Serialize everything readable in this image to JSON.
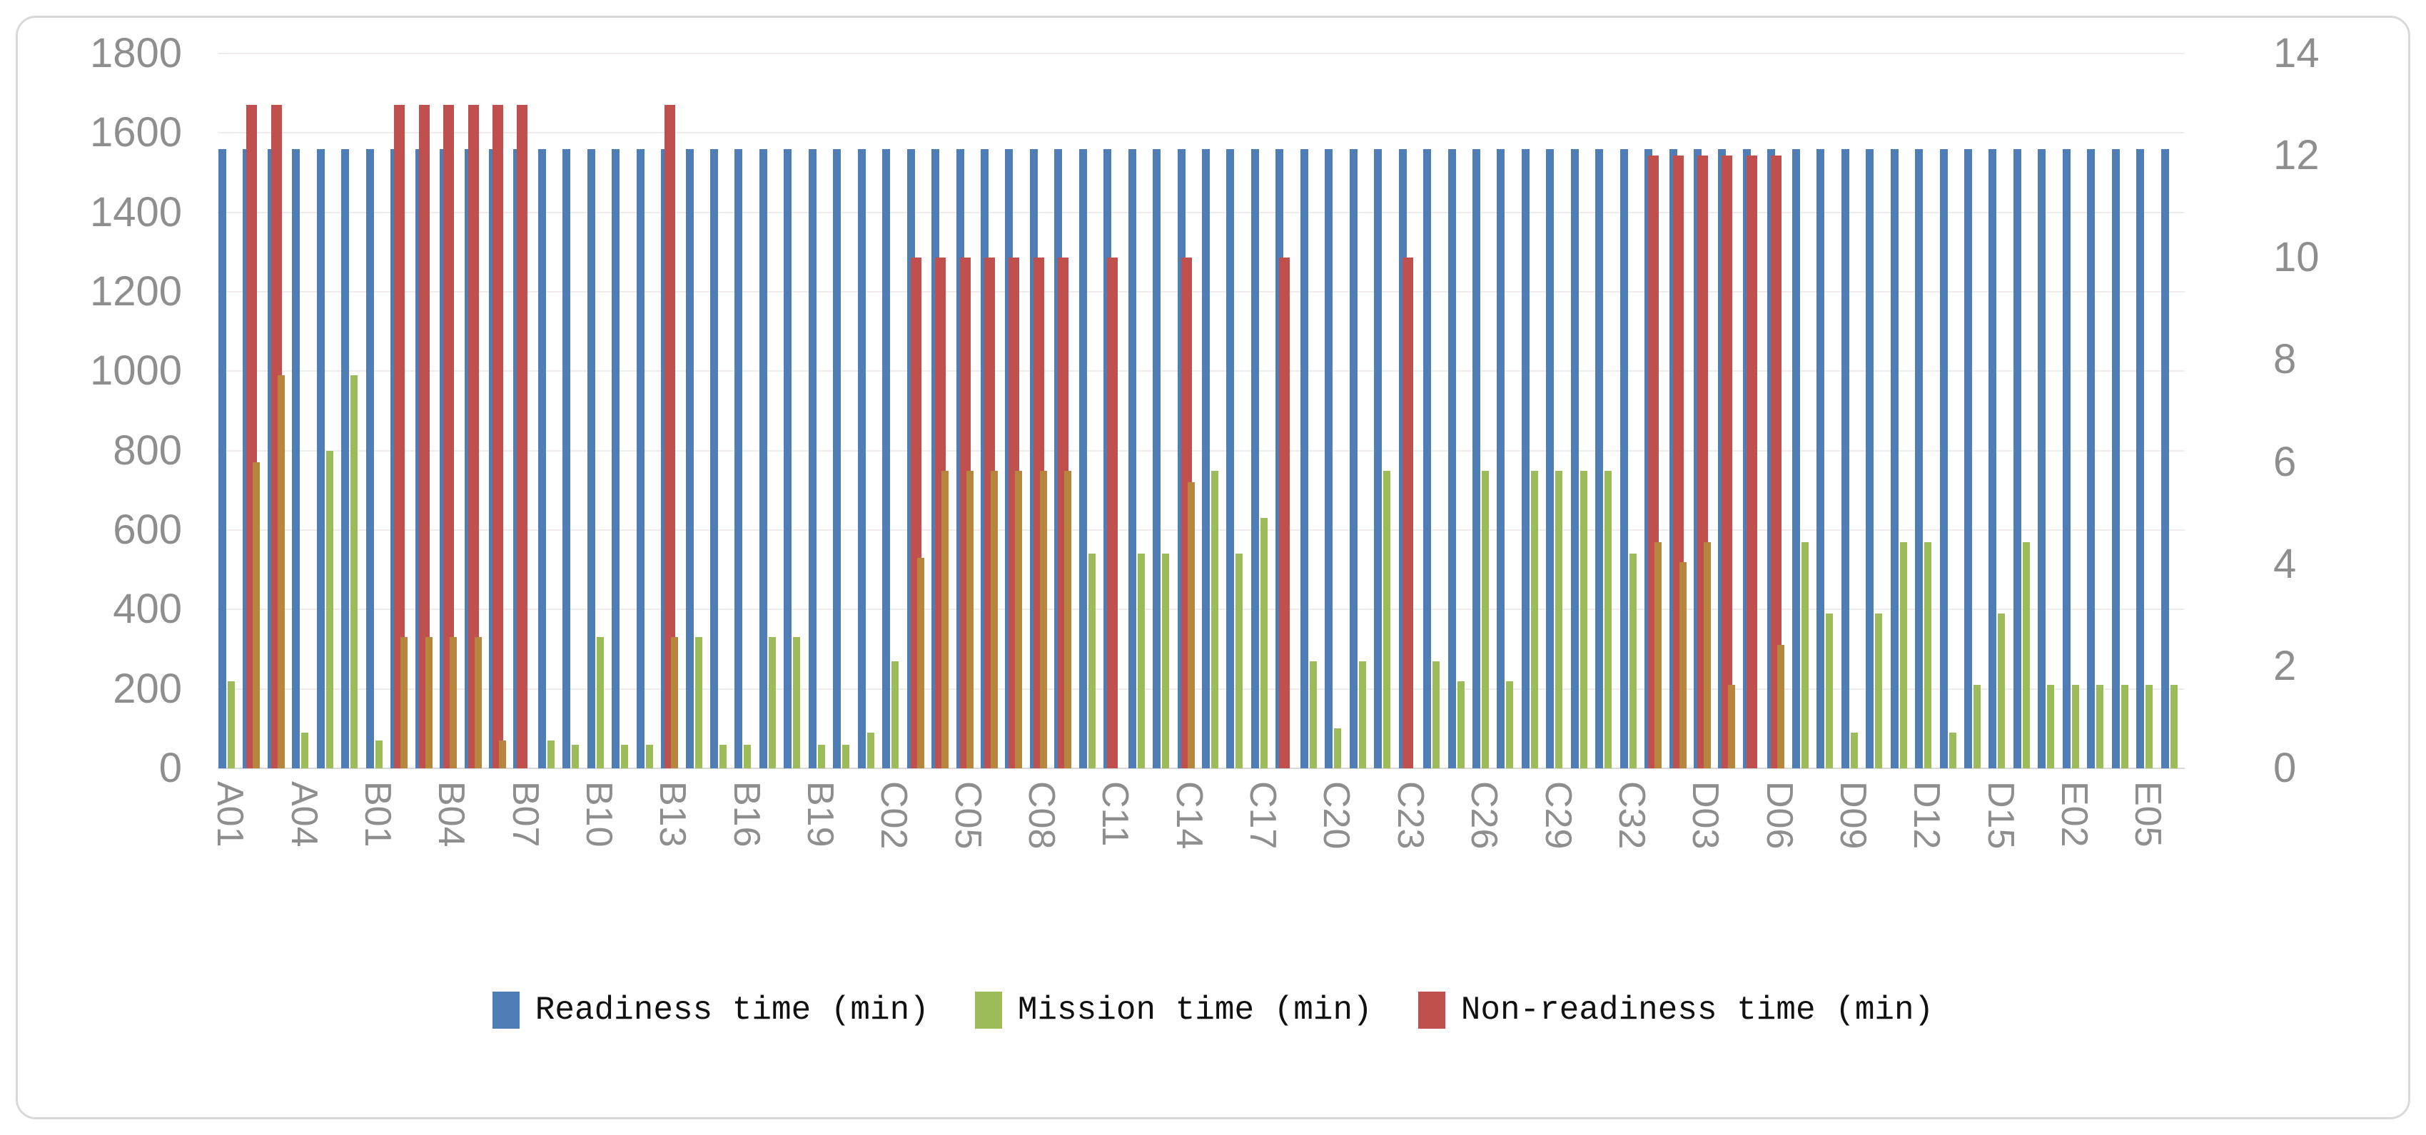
{
  "chart_data": {
    "type": "bar",
    "title": "",
    "xlabel": "",
    "ylabel": "",
    "categories": [
      "A01",
      "A02",
      "A03",
      "A04",
      "A05",
      "A06",
      "B01",
      "B02",
      "B03",
      "B04",
      "B05",
      "B06",
      "B07",
      "B08",
      "B09",
      "B10",
      "B11",
      "B12",
      "B13",
      "B14",
      "B15",
      "B16",
      "B17",
      "B18",
      "B19",
      "B20",
      "C01",
      "C02",
      "C03",
      "C04",
      "C05",
      "C06",
      "C07",
      "C08",
      "C09",
      "C10",
      "C11",
      "C12",
      "C13",
      "C14",
      "C15",
      "C16",
      "C17",
      "C18",
      "C19",
      "C20",
      "C21",
      "C22",
      "C23",
      "C24",
      "C25",
      "C26",
      "C27",
      "C28",
      "C29",
      "C30",
      "C31",
      "C32",
      "D01",
      "D02",
      "D03",
      "D04",
      "D05",
      "D06",
      "D07",
      "D08",
      "D09",
      "D10",
      "D11",
      "D12",
      "D13",
      "D14",
      "D15",
      "D16",
      "E01",
      "E02",
      "E03",
      "E04",
      "E05",
      "E06"
    ],
    "x_tick_every": 3,
    "x_tick_labels": [
      "A01",
      "A04",
      "B01",
      "B04",
      "B07",
      "B10",
      "B13",
      "B16",
      "B19",
      "C02",
      "C05",
      "C08",
      "C11",
      "C14",
      "C17",
      "C20",
      "C23",
      "C26",
      "C29",
      "C32",
      "D03",
      "D06",
      "D09",
      "D12",
      "D15",
      "E02",
      "E05"
    ],
    "left_axis": {
      "min": 0,
      "max": 1800,
      "step": 200,
      "ticks": [
        1800,
        1600,
        1400,
        1200,
        1000,
        800,
        600,
        400,
        200,
        0
      ]
    },
    "right_axis": {
      "min": 0,
      "max": 14,
      "step": 2,
      "ticks": [
        14,
        12,
        10,
        8,
        6,
        4,
        2,
        0
      ]
    },
    "grid": "horizontal",
    "legend_position": "bottom",
    "colors": {
      "readiness": "#4f7db5",
      "mission": "#9cbb59",
      "non_readiness": "#c0504d",
      "overlap_blend": "#b5863c",
      "gridline": "#f1eceb",
      "axis_text": "#8e8e8e",
      "frame_border": "#d9d9d9"
    },
    "series": [
      {
        "name": "Readiness time (min)",
        "axis": "left",
        "color": "#4f7db5",
        "values": [
          1560,
          1560,
          1560,
          1560,
          1560,
          1560,
          1560,
          1560,
          1560,
          1560,
          1560,
          1560,
          1560,
          1560,
          1560,
          1560,
          1560,
          1560,
          1560,
          1560,
          1560,
          1560,
          1560,
          1560,
          1560,
          1560,
          1560,
          1560,
          1560,
          1560,
          1560,
          1560,
          1560,
          1560,
          1560,
          1560,
          1560,
          1560,
          1560,
          1560,
          1560,
          1560,
          1560,
          1560,
          1560,
          1560,
          1560,
          1560,
          1560,
          1560,
          1560,
          1560,
          1560,
          1560,
          1560,
          1560,
          1560,
          1560,
          1560,
          1560,
          1560,
          1560,
          1560,
          1560,
          1560,
          1560,
          1560,
          1560,
          1560,
          1560,
          1560,
          1560,
          1560,
          1560,
          1560,
          1560,
          1560,
          1560,
          1560,
          1560
        ]
      },
      {
        "name": "Mission time (min)",
        "axis": "left",
        "color": "#9cbb59",
        "values": [
          220,
          770,
          990,
          90,
          800,
          990,
          70,
          330,
          330,
          330,
          330,
          70,
          0,
          70,
          60,
          330,
          60,
          60,
          330,
          330,
          60,
          60,
          330,
          330,
          60,
          60,
          90,
          270,
          530,
          750,
          750,
          750,
          750,
          750,
          750,
          540,
          0,
          540,
          540,
          720,
          750,
          540,
          630,
          0,
          270,
          100,
          270,
          750,
          0,
          270,
          220,
          750,
          220,
          750,
          750,
          750,
          750,
          540,
          570,
          520,
          570,
          210,
          0,
          310,
          570,
          390,
          90,
          390,
          570,
          570,
          90,
          210,
          390,
          570,
          210,
          210,
          210,
          210,
          210,
          210
        ]
      },
      {
        "name": "Non-readiness time (min)",
        "axis": "right",
        "color": "#c0504d",
        "values": [
          null,
          13,
          13,
          null,
          null,
          null,
          null,
          13,
          13,
          13,
          13,
          13,
          13,
          null,
          null,
          null,
          null,
          null,
          13,
          null,
          null,
          null,
          null,
          null,
          null,
          null,
          null,
          null,
          10,
          10,
          10,
          10,
          10,
          10,
          10,
          null,
          10,
          null,
          null,
          10,
          null,
          null,
          null,
          10,
          null,
          null,
          null,
          null,
          10,
          null,
          null,
          null,
          null,
          null,
          null,
          null,
          null,
          null,
          12,
          12,
          12,
          12,
          12,
          12,
          null,
          null,
          null,
          null,
          null,
          null,
          null,
          null,
          null,
          null,
          null,
          null,
          null,
          null,
          null,
          null
        ]
      }
    ]
  }
}
